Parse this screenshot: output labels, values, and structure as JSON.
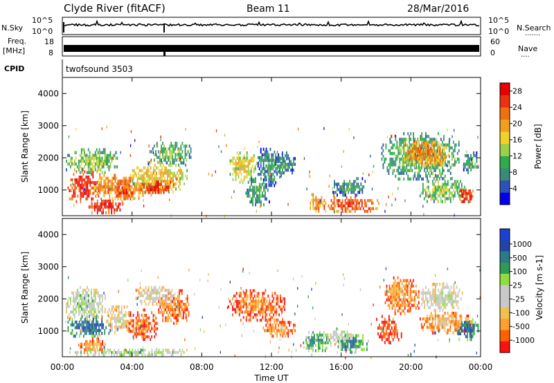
{
  "header": {
    "station": "Clyde River (fitACF)",
    "beam": "Beam 11",
    "date": "28/Mar/2016"
  },
  "top_panels": {
    "nsky_label": "N.Sky",
    "nsearch_label": "N.Search",
    "nsearch_dots": "·······",
    "nsky_ticks": [
      "10^5",
      "10^0"
    ],
    "nsearch_ticks": [
      "10^5",
      "10^0"
    ],
    "freq_label_line1": "Freq.",
    "freq_label_line2": "[MHz]",
    "freq_ticks": [
      "18",
      "8"
    ],
    "nave_label": "Nave",
    "nave_dots": "····",
    "nave_ticks": [
      "60",
      "0"
    ],
    "cpid_label": "CPID",
    "cpid_value": "twofsound 3503"
  },
  "colors": {
    "power_scale": [
      "#0000ee",
      "#2a52b8",
      "#3a8a7a",
      "#2faa4c",
      "#9ad04a",
      "#f2d22a",
      "#f0a020",
      "#f07010",
      "#ee3010",
      "#e80000"
    ],
    "velocity_scale": [
      "#ff1010",
      "#ff6000",
      "#ffa030",
      "#f2c050",
      "#c8c8c8",
      "#c8c8c8",
      "#90dd40",
      "#2e9a55",
      "#2a7a8a",
      "#2244aa",
      "#1e40d0"
    ]
  },
  "chart_data": [
    {
      "type": "heatmap",
      "name": "power",
      "ylabel": "Slant Range [km]",
      "xlabel": "Time UT",
      "x_ticks": [
        "00:00",
        "04:00",
        "08:00",
        "12:00",
        "16:00",
        "20:00",
        "00:00"
      ],
      "y_ticks": [
        1000,
        2000,
        3000,
        4000
      ],
      "ylim": [
        200,
        4500
      ],
      "colorbar_label": "Power [dB]",
      "colorbar_ticks": [
        4,
        8,
        12,
        16,
        20,
        24,
        28
      ],
      "clim": [
        0,
        30
      ],
      "regions": [
        {
          "t0": 0.3,
          "t1": 2.2,
          "r0": 600,
          "r1": 1700,
          "level": 0.9
        },
        {
          "t0": 0.2,
          "t1": 3.2,
          "r0": 1500,
          "r1": 2300,
          "level": 0.45
        },
        {
          "t0": 1.8,
          "t1": 5.0,
          "r0": 700,
          "r1": 1500,
          "level": 0.75
        },
        {
          "t0": 1.5,
          "t1": 3.6,
          "r0": 250,
          "r1": 700,
          "level": 0.95
        },
        {
          "t0": 3.0,
          "t1": 4.2,
          "r0": 600,
          "r1": 1200,
          "level": 0.85
        },
        {
          "t0": 4.0,
          "t1": 7.2,
          "r0": 900,
          "r1": 1900,
          "level": 0.6
        },
        {
          "t0": 4.5,
          "t1": 6.2,
          "r0": 800,
          "r1": 1300,
          "level": 0.88
        },
        {
          "t0": 5.0,
          "t1": 7.5,
          "r0": 1800,
          "r1": 2500,
          "level": 0.4
        },
        {
          "t0": 9.6,
          "t1": 11.2,
          "r0": 1200,
          "r1": 2200,
          "level": 0.55
        },
        {
          "t0": 10.5,
          "t1": 12.0,
          "r0": 500,
          "r1": 1400,
          "level": 0.35
        },
        {
          "t0": 11.2,
          "t1": 12.6,
          "r0": 1100,
          "r1": 2400,
          "level": 0.3
        },
        {
          "t0": 12.2,
          "t1": 13.4,
          "r0": 1400,
          "r1": 2200,
          "level": 0.3
        },
        {
          "t0": 14.2,
          "t1": 15.0,
          "r0": 300,
          "r1": 900,
          "level": 0.75
        },
        {
          "t0": 15.0,
          "t1": 18.2,
          "r0": 300,
          "r1": 800,
          "level": 0.85
        },
        {
          "t0": 15.5,
          "t1": 17.5,
          "r0": 800,
          "r1": 1400,
          "level": 0.3
        },
        {
          "t0": 18.3,
          "t1": 22.8,
          "r0": 1300,
          "r1": 2800,
          "level": 0.4
        },
        {
          "t0": 19.6,
          "t1": 22.2,
          "r0": 1700,
          "r1": 2600,
          "level": 0.72
        },
        {
          "t0": 20.5,
          "t1": 23.2,
          "r0": 600,
          "r1": 1400,
          "level": 0.45
        },
        {
          "t0": 22.7,
          "t1": 23.6,
          "r0": 600,
          "r1": 1100,
          "level": 0.9
        },
        {
          "t0": 23.0,
          "t1": 23.9,
          "r0": 1500,
          "r1": 2200,
          "level": 0.35
        }
      ]
    },
    {
      "type": "heatmap",
      "name": "velocity",
      "ylabel": "Slant Range [km]",
      "xlabel": "Time UT",
      "x_ticks": [
        "00:00",
        "04:00",
        "08:00",
        "12:00",
        "16:00",
        "20:00",
        "00:00"
      ],
      "y_ticks": [
        1000,
        2000,
        3000,
        4000
      ],
      "ylim": [
        200,
        4500
      ],
      "colorbar_label": "Velocity [m s-1]",
      "colorbar_ticks": [
        "1000",
        "500",
        "100",
        "25",
        "-25",
        "-100",
        "-500",
        "-1000"
      ],
      "regions": [
        {
          "t0": 0.2,
          "t1": 2.5,
          "r0": 1300,
          "r1": 2400,
          "level": 0.55
        },
        {
          "t0": 0.3,
          "t1": 2.8,
          "r0": 800,
          "r1": 1500,
          "level": 0.85
        },
        {
          "t0": 1.0,
          "t1": 2.5,
          "r0": 300,
          "r1": 800,
          "level": 0.25
        },
        {
          "t0": 2.5,
          "t1": 4.0,
          "r0": 900,
          "r1": 1800,
          "level": 0.45
        },
        {
          "t0": 3.8,
          "t1": 5.5,
          "r0": 700,
          "r1": 1700,
          "level": 0.2
        },
        {
          "t0": 5.5,
          "t1": 7.3,
          "r0": 1200,
          "r1": 2300,
          "level": 0.22
        },
        {
          "t0": 4.2,
          "t1": 6.5,
          "r0": 1800,
          "r1": 2400,
          "level": 0.45
        },
        {
          "t0": 0.4,
          "t1": 7.5,
          "r0": 220,
          "r1": 450,
          "level": 0.6
        },
        {
          "t0": 9.5,
          "t1": 12.8,
          "r0": 1300,
          "r1": 2300,
          "level": 0.2
        },
        {
          "t0": 11.5,
          "t1": 13.4,
          "r0": 800,
          "r1": 1400,
          "level": 0.25
        },
        {
          "t0": 13.8,
          "t1": 15.6,
          "r0": 350,
          "r1": 1000,
          "level": 0.7
        },
        {
          "t0": 15.2,
          "t1": 16.8,
          "r0": 600,
          "r1": 1100,
          "level": 0.5
        },
        {
          "t0": 15.8,
          "t1": 17.6,
          "r0": 300,
          "r1": 900,
          "level": 0.75
        },
        {
          "t0": 18.0,
          "t1": 19.5,
          "r0": 600,
          "r1": 1500,
          "level": 0.15
        },
        {
          "t0": 18.5,
          "t1": 20.5,
          "r0": 1500,
          "r1": 2700,
          "level": 0.25
        },
        {
          "t0": 20.5,
          "t1": 23.0,
          "r0": 1600,
          "r1": 2500,
          "level": 0.5
        },
        {
          "t0": 20.5,
          "t1": 23.5,
          "r0": 900,
          "r1": 1600,
          "level": 0.3
        },
        {
          "t0": 22.5,
          "t1": 23.9,
          "r0": 700,
          "r1": 1400,
          "level": 0.8
        }
      ]
    }
  ]
}
